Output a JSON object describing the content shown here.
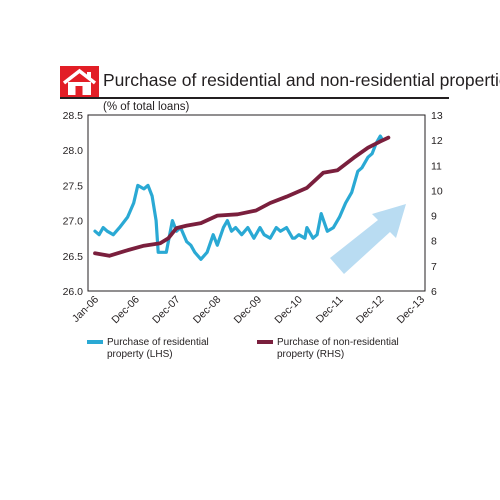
{
  "chart_data": {
    "type": "line",
    "title": "Purchase of residential and non-residential properties",
    "subtitle": "(% of total loans)",
    "x_ticks": [
      "Jan-06",
      "Dec-06",
      "Dec-07",
      "Dec-08",
      "Dec-09",
      "Dec-10",
      "Dec-11",
      "Dec-12",
      "Dec-13"
    ],
    "left_axis": {
      "ticks": [
        "28.5",
        "28.0",
        "27.5",
        "27.0",
        "26.5",
        "26.0"
      ],
      "ylim": [
        26.0,
        28.5
      ]
    },
    "right_axis": {
      "ticks": [
        "13",
        "12",
        "11",
        "10",
        "9",
        "8",
        "7",
        "6"
      ],
      "ylim": [
        6,
        13
      ]
    },
    "grid": false,
    "legend_position": "bottom",
    "series": [
      {
        "name": "Purchase of residential property (LHS)",
        "axis": "left",
        "color": "#2aa9d4",
        "points": [
          [
            0,
            26.85
          ],
          [
            0.1,
            26.8
          ],
          [
            0.2,
            26.9
          ],
          [
            0.3,
            26.85
          ],
          [
            0.45,
            26.8
          ],
          [
            0.6,
            26.9
          ],
          [
            0.8,
            27.05
          ],
          [
            0.95,
            27.25
          ],
          [
            1.05,
            27.5
          ],
          [
            1.2,
            27.45
          ],
          [
            1.3,
            27.5
          ],
          [
            1.4,
            27.35
          ],
          [
            1.5,
            27.0
          ],
          [
            1.55,
            26.55
          ],
          [
            1.75,
            26.55
          ],
          [
            1.9,
            27.0
          ],
          [
            2.0,
            26.85
          ],
          [
            2.1,
            26.9
          ],
          [
            2.25,
            26.7
          ],
          [
            2.35,
            26.65
          ],
          [
            2.45,
            26.55
          ],
          [
            2.6,
            26.45
          ],
          [
            2.75,
            26.55
          ],
          [
            2.9,
            26.8
          ],
          [
            3.0,
            26.65
          ],
          [
            3.15,
            26.9
          ],
          [
            3.25,
            27.0
          ],
          [
            3.35,
            26.85
          ],
          [
            3.45,
            26.9
          ],
          [
            3.6,
            26.8
          ],
          [
            3.75,
            26.9
          ],
          [
            3.9,
            26.75
          ],
          [
            4.05,
            26.9
          ],
          [
            4.15,
            26.8
          ],
          [
            4.3,
            26.75
          ],
          [
            4.45,
            26.9
          ],
          [
            4.55,
            26.85
          ],
          [
            4.7,
            26.9
          ],
          [
            4.85,
            26.75
          ],
          [
            4.9,
            26.75
          ],
          [
            5.0,
            26.8
          ],
          [
            5.15,
            26.75
          ],
          [
            5.2,
            26.9
          ],
          [
            5.35,
            26.75
          ],
          [
            5.45,
            26.8
          ],
          [
            5.55,
            27.1
          ],
          [
            5.7,
            26.85
          ],
          [
            5.85,
            26.9
          ],
          [
            6.0,
            27.05
          ],
          [
            6.15,
            27.25
          ],
          [
            6.3,
            27.4
          ],
          [
            6.45,
            27.7
          ],
          [
            6.55,
            27.75
          ],
          [
            6.7,
            27.9
          ],
          [
            6.8,
            27.95
          ],
          [
            6.9,
            28.1
          ],
          [
            7.0,
            28.2
          ],
          [
            7.05,
            28.15
          ]
        ]
      },
      {
        "name": "Purchase of non-residential property (RHS)",
        "axis": "right",
        "color": "#7a1f3d",
        "points": [
          [
            0,
            7.5
          ],
          [
            0.35,
            7.4
          ],
          [
            0.75,
            7.6
          ],
          [
            1.2,
            7.8
          ],
          [
            1.6,
            7.9
          ],
          [
            1.8,
            8.1
          ],
          [
            2.0,
            8.5
          ],
          [
            2.25,
            8.6
          ],
          [
            2.6,
            8.7
          ],
          [
            3.0,
            9.0
          ],
          [
            3.5,
            9.05
          ],
          [
            3.95,
            9.2
          ],
          [
            4.3,
            9.5
          ],
          [
            4.7,
            9.75
          ],
          [
            5.2,
            10.1
          ],
          [
            5.6,
            10.7
          ],
          [
            5.95,
            10.8
          ],
          [
            6.35,
            11.3
          ],
          [
            6.7,
            11.7
          ],
          [
            7.0,
            11.95
          ],
          [
            7.2,
            12.1
          ]
        ]
      }
    ],
    "annotations": [
      {
        "type": "arrow",
        "description": "upward trend arrow",
        "color": "#b9dcf2"
      }
    ]
  }
}
